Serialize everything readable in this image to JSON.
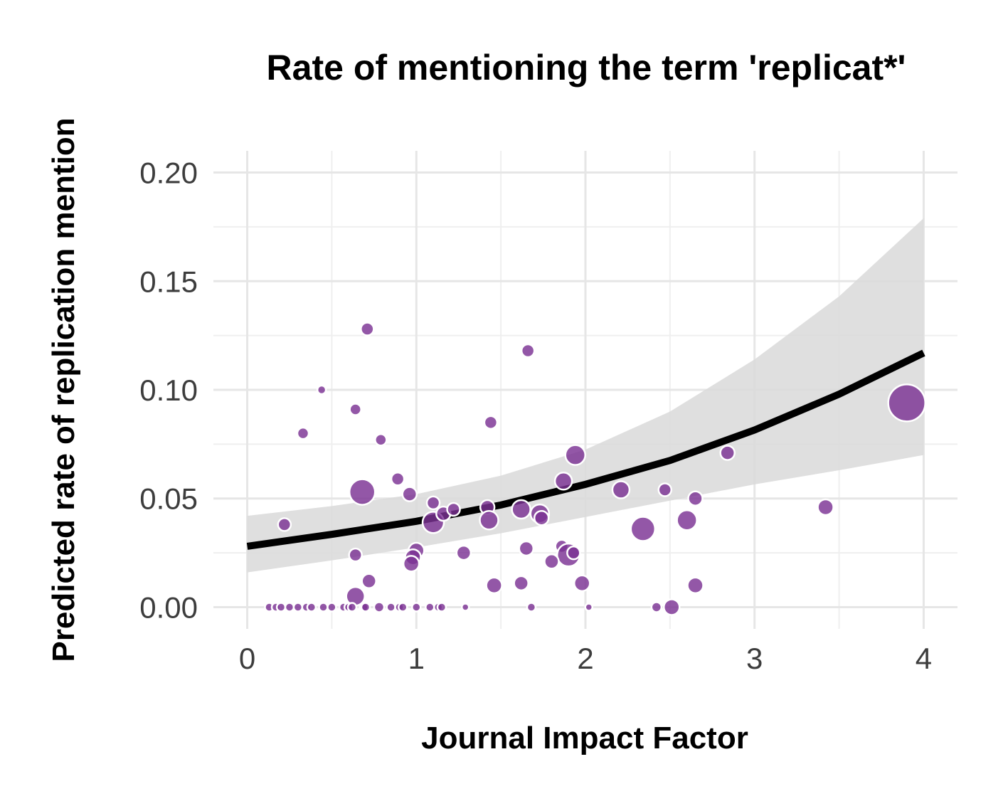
{
  "chart_data": {
    "type": "scatter",
    "title": "Rate of mentioning the term 'replicat*'",
    "xlabel": "Journal Impact Factor",
    "ylabel": "Predicted rate of replication mention",
    "xlim": [
      -0.2,
      4.2
    ],
    "ylim": [
      -0.01,
      0.21
    ],
    "x_ticks": [
      0,
      1,
      2,
      3,
      4
    ],
    "x_tick_labels": [
      "0",
      "1",
      "2",
      "3",
      "4"
    ],
    "y_ticks": [
      0,
      0.05,
      0.1,
      0.15,
      0.2
    ],
    "y_tick_labels": [
      "0.00",
      "0.05",
      "0.10",
      "0.15",
      "0.20"
    ],
    "grid": true,
    "legend": "none",
    "colors": {
      "points": "#7b3294",
      "point_outline": "#ffffff",
      "fit_line": "#000000",
      "ribbon": "#d9d9d9"
    },
    "fit": {
      "x": [
        0,
        0.5,
        1,
        1.5,
        2,
        2.5,
        3,
        3.5,
        4
      ],
      "y": [
        0.028,
        0.0335,
        0.0395,
        0.047,
        0.0565,
        0.0675,
        0.0815,
        0.098,
        0.117
      ],
      "lower": [
        0.016,
        0.0215,
        0.0275,
        0.034,
        0.0415,
        0.049,
        0.0565,
        0.063,
        0.07
      ],
      "upper": [
        0.042,
        0.0465,
        0.052,
        0.0605,
        0.0725,
        0.09,
        0.114,
        0.143,
        0.179
      ]
    },
    "series": [
      {
        "x": [
          0.22,
          0.44,
          0.33,
          0.64,
          0.71,
          0.79,
          0.68,
          0.89,
          0.96,
          1.1,
          1.1,
          1.16,
          1.22,
          1.0,
          0.98,
          0.97,
          0.64,
          0.72,
          0.64,
          1.28,
          1.42,
          1.43,
          1.44,
          1.46,
          1.62,
          1.66,
          1.62,
          1.73,
          1.74,
          1.65,
          1.86,
          1.87,
          1.9,
          1.94,
          1.8,
          1.98,
          1.93,
          2.21,
          2.34,
          2.47,
          2.6,
          2.65,
          2.65,
          2.84,
          3.42,
          3.9,
          2.42,
          2.51,
          1.68,
          2.02,
          0.13,
          0.17,
          0.2,
          0.25,
          0.3,
          0.35,
          0.38,
          0.45,
          0.5,
          0.57,
          0.6,
          0.62,
          0.69,
          0.7,
          0.78,
          0.85,
          0.9,
          0.92,
          1.0,
          1.08,
          1.13,
          1.15,
          1.29
        ],
        "y": [
          0.038,
          0.1,
          0.08,
          0.091,
          0.128,
          0.077,
          0.053,
          0.059,
          0.052,
          0.048,
          0.039,
          0.043,
          0.045,
          0.026,
          0.023,
          0.02,
          0.024,
          0.012,
          0.005,
          0.025,
          0.046,
          0.04,
          0.085,
          0.01,
          0.045,
          0.118,
          0.011,
          0.043,
          0.041,
          0.027,
          0.028,
          0.058,
          0.024,
          0.07,
          0.021,
          0.011,
          0.025,
          0.054,
          0.036,
          0.054,
          0.04,
          0.05,
          0.01,
          0.071,
          0.046,
          0.094,
          0.0,
          0.0,
          0.0,
          0.0,
          0.0,
          0.0,
          0.0,
          0.0,
          0.0,
          0.0,
          0.0,
          0.0,
          0.0,
          0.0,
          0.0,
          0.0,
          0.0,
          0.0,
          0.0,
          0.0,
          0.0,
          0.0,
          0.0,
          0.0,
          0.0,
          0.0,
          0.0
        ],
        "size": [
          9,
          6,
          8,
          8,
          9,
          8,
          18,
          9,
          10,
          9,
          15,
          10,
          9,
          11,
          11,
          11,
          9,
          10,
          13,
          10,
          10,
          13,
          9,
          11,
          13,
          9,
          10,
          13,
          10,
          10,
          9,
          12,
          16,
          14,
          10,
          11,
          9,
          12,
          17,
          9,
          14,
          10,
          11,
          10,
          11,
          26,
          7,
          11,
          6,
          5,
          6,
          6,
          6,
          6,
          6,
          6,
          6,
          6,
          6,
          6,
          6,
          6,
          6,
          6,
          7,
          6,
          6,
          6,
          6,
          6,
          6,
          6,
          5
        ]
      }
    ]
  }
}
